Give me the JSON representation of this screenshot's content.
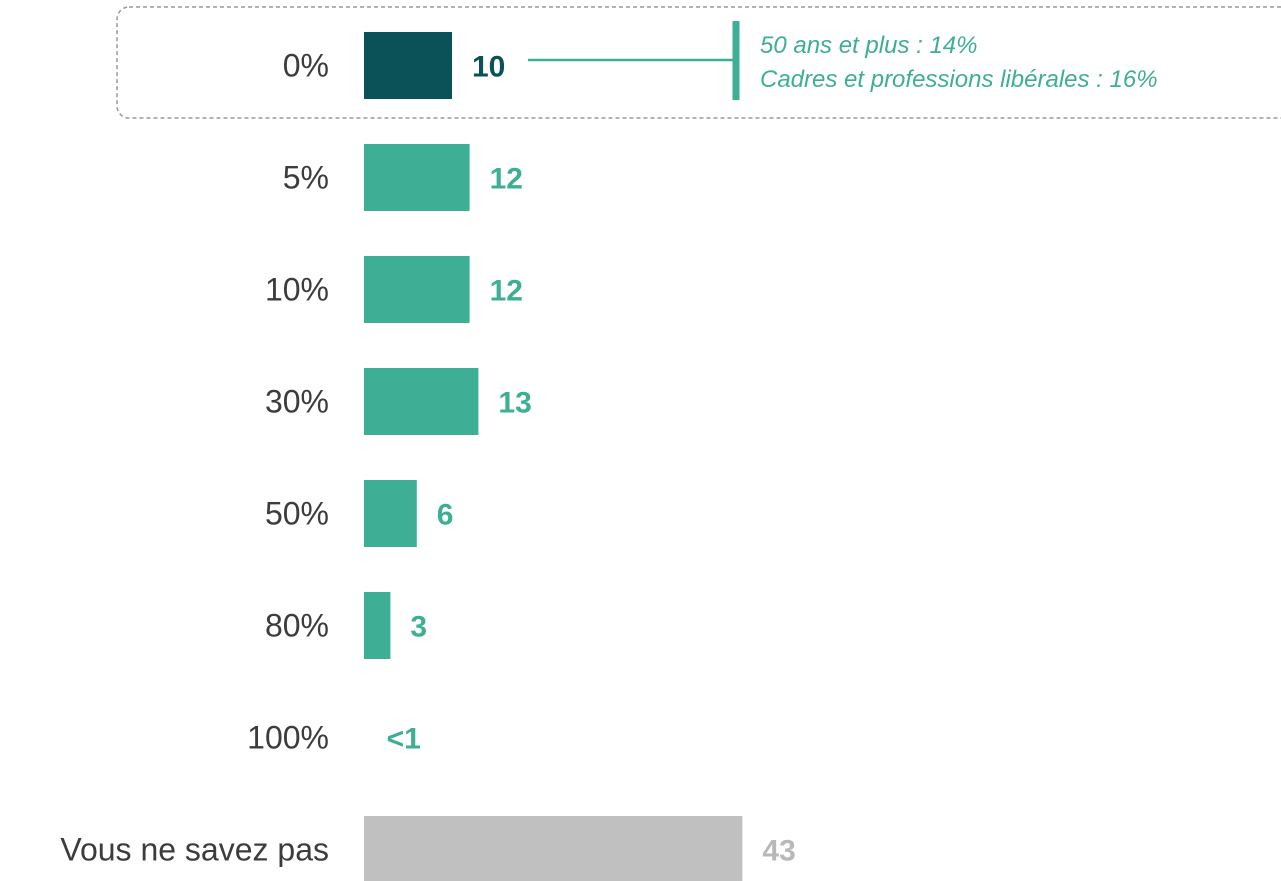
{
  "chart_data": {
    "type": "bar",
    "orientation": "horizontal",
    "categories": [
      "0%",
      "5%",
      "10%",
      "30%",
      "50%",
      "80%",
      "100%",
      "Vous ne savez pas"
    ],
    "values": [
      10,
      12,
      12,
      13,
      6,
      3,
      0.3,
      43
    ],
    "value_labels": [
      "10",
      "12",
      "12",
      "13",
      "6",
      "3",
      "<1",
      "43"
    ],
    "highlighted_category": "0%",
    "annotation": {
      "lines": [
        "50 ans et plus : 14%",
        "Cadres et professions libérales : 16%"
      ]
    },
    "grid": false,
    "legend": "none",
    "colors": {
      "highlight": "#0b5158",
      "default": "#3eae94",
      "unknown": "#c0c0c0",
      "unknown_label": "#b8b8b8",
      "category_text": "#3c3c3c",
      "frame": "#9a9a9a"
    }
  }
}
